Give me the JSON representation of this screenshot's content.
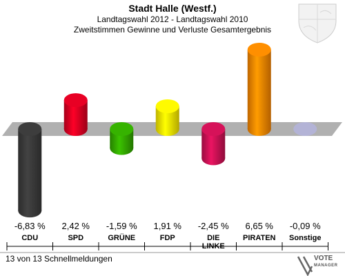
{
  "header": {
    "title": "Stadt Halle (Westf.)",
    "subtitle1": "Landtagswahl 2012 - Landtagswahl 2010",
    "subtitle2": "Zweitstimmen Gewinne und Verluste Gesamtergebnis"
  },
  "footer": {
    "note": "13 von 13 Schnellmeldungen",
    "logo_line1": "VOTE",
    "logo_line2": "MANAGER"
  },
  "colors": {
    "CDU": "#3a3a3a",
    "SPD": "#dd0022",
    "GRÜNE": "#33aa00",
    "FDP": "#ffee00",
    "DIE LINKE": "#cc1155",
    "PIRATEN": "#ff8800",
    "Sonstige": "#aaaacc",
    "zero_band": "#b0b0b0"
  },
  "chart_data": {
    "type": "bar",
    "categories": [
      "CDU",
      "SPD",
      "GRÜNE",
      "FDP",
      "DIE\nLINKE",
      "PIRATEN",
      "Sonstige"
    ],
    "values": [
      -6.83,
      2.42,
      -1.59,
      1.91,
      -2.45,
      6.65,
      -0.09
    ],
    "value_labels": [
      "-6,83 %",
      "2,42 %",
      "-1,59 %",
      "1,91 %",
      "-2,45 %",
      "6,65 %",
      "-0,09 %"
    ],
    "ylim": [
      -7,
      7
    ],
    "grid": false,
    "legend": "none"
  }
}
